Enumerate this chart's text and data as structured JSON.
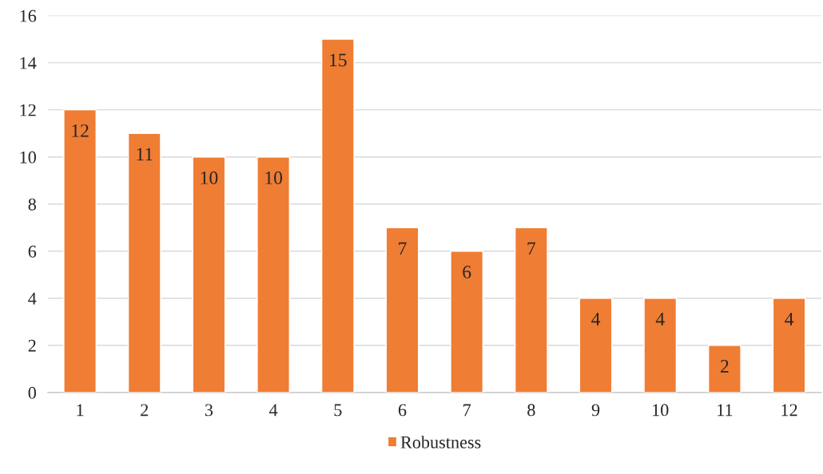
{
  "chart_data": {
    "type": "bar",
    "categories": [
      "1",
      "2",
      "3",
      "4",
      "5",
      "6",
      "7",
      "8",
      "9",
      "10",
      "11",
      "12"
    ],
    "series": [
      {
        "name": "Robustness",
        "color": "#ef7d34",
        "values": [
          12,
          11,
          10,
          10,
          15,
          7,
          6,
          7,
          4,
          4,
          2,
          4
        ]
      }
    ],
    "ylim": [
      0,
      16
    ],
    "yticks": [
      0,
      2,
      4,
      6,
      8,
      10,
      12,
      14,
      16
    ],
    "grid": "y",
    "legend": "bottom",
    "data_labels": true
  }
}
